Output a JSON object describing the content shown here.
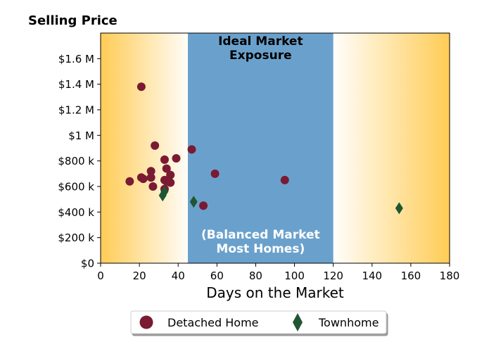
{
  "chart_data": {
    "type": "scatter",
    "title": "Selling Price",
    "xlabel": "Days on the Market",
    "ylabel": "",
    "xlim": [
      0,
      180
    ],
    "ylim": [
      0,
      1800000
    ],
    "xticks": [
      0,
      20,
      40,
      60,
      80,
      100,
      120,
      140,
      160,
      180
    ],
    "yticks": [
      {
        "value": 0,
        "label": "$0"
      },
      {
        "value": 200000,
        "label": "$200 k"
      },
      {
        "value": 400000,
        "label": "$400 k"
      },
      {
        "value": 600000,
        "label": "$600 k"
      },
      {
        "value": 800000,
        "label": "$800 k"
      },
      {
        "value": 1000000,
        "label": "$1 M"
      },
      {
        "value": 1200000,
        "label": "$1.2 M"
      },
      {
        "value": 1400000,
        "label": "$1.4 M"
      },
      {
        "value": 1600000,
        "label": "$1.6 M"
      }
    ],
    "band": {
      "x_range": [
        45,
        120
      ],
      "color": "#6aa1cc",
      "top_label": [
        "Ideal Market",
        "Exposure"
      ],
      "bottom_label": [
        "(Balanced Market",
        "Most Homes)"
      ]
    },
    "background_gradient": {
      "edge_color": "#ffcc55",
      "mid_color": "#ffffff"
    },
    "series": [
      {
        "name": "Detached Home",
        "marker": "circle",
        "color": "#7a1a33",
        "points": [
          {
            "x": 15,
            "y": 640000
          },
          {
            "x": 21,
            "y": 1380000
          },
          {
            "x": 21,
            "y": 670000
          },
          {
            "x": 22,
            "y": 660000
          },
          {
            "x": 26,
            "y": 720000
          },
          {
            "x": 26,
            "y": 670000
          },
          {
            "x": 27,
            "y": 600000
          },
          {
            "x": 28,
            "y": 920000
          },
          {
            "x": 33,
            "y": 810000
          },
          {
            "x": 33,
            "y": 650000
          },
          {
            "x": 33,
            "y": 580000
          },
          {
            "x": 34,
            "y": 740000
          },
          {
            "x": 34,
            "y": 640000
          },
          {
            "x": 36,
            "y": 690000
          },
          {
            "x": 36,
            "y": 630000
          },
          {
            "x": 39,
            "y": 820000
          },
          {
            "x": 47,
            "y": 890000
          },
          {
            "x": 53,
            "y": 450000
          },
          {
            "x": 59,
            "y": 700000
          },
          {
            "x": 95,
            "y": 650000
          }
        ]
      },
      {
        "name": "Townhome",
        "marker": "diamond",
        "color": "#1e5631",
        "points": [
          {
            "x": 32,
            "y": 530000
          },
          {
            "x": 33,
            "y": 560000
          },
          {
            "x": 48,
            "y": 480000
          },
          {
            "x": 154,
            "y": 430000
          }
        ]
      }
    ],
    "legend": {
      "placement": "bottom-center"
    }
  }
}
